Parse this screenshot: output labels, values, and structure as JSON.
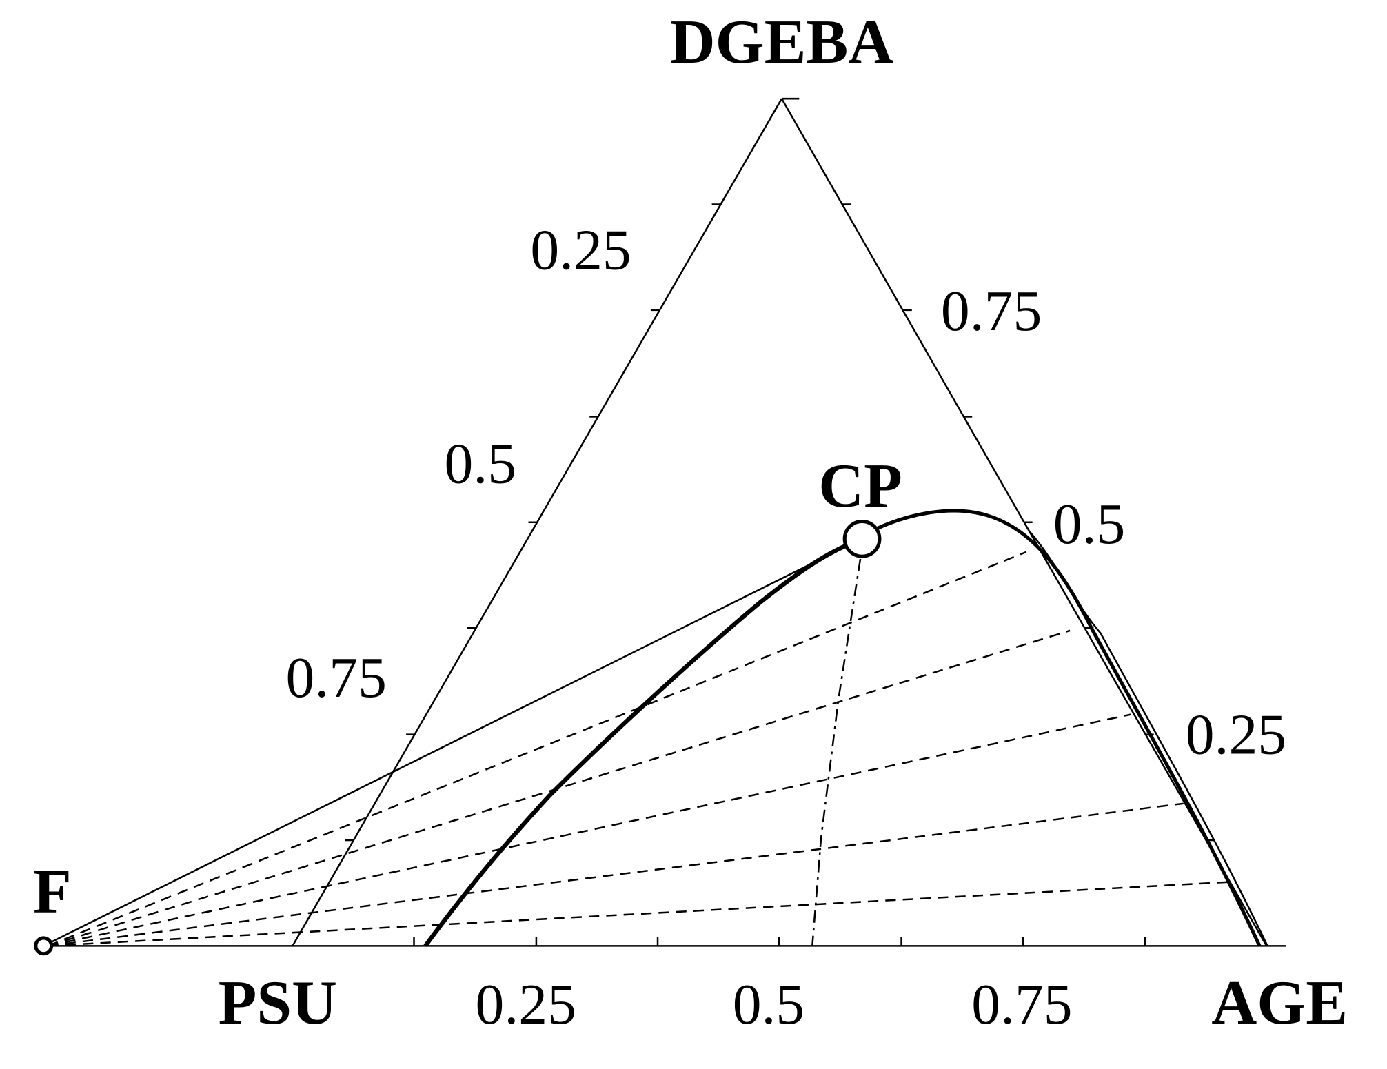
{
  "vertices": {
    "top": "DGEBA",
    "left": "PSU",
    "right": "AGE"
  },
  "left_axis_labels": [
    "0.25",
    "0.5",
    "0.75"
  ],
  "right_axis_labels": [
    "0.75",
    "0.5",
    "0.25"
  ],
  "bottom_axis_labels": [
    "0.25",
    "0.5",
    "0.75"
  ],
  "points": {
    "origin": "F",
    "critical": "CP"
  }
}
